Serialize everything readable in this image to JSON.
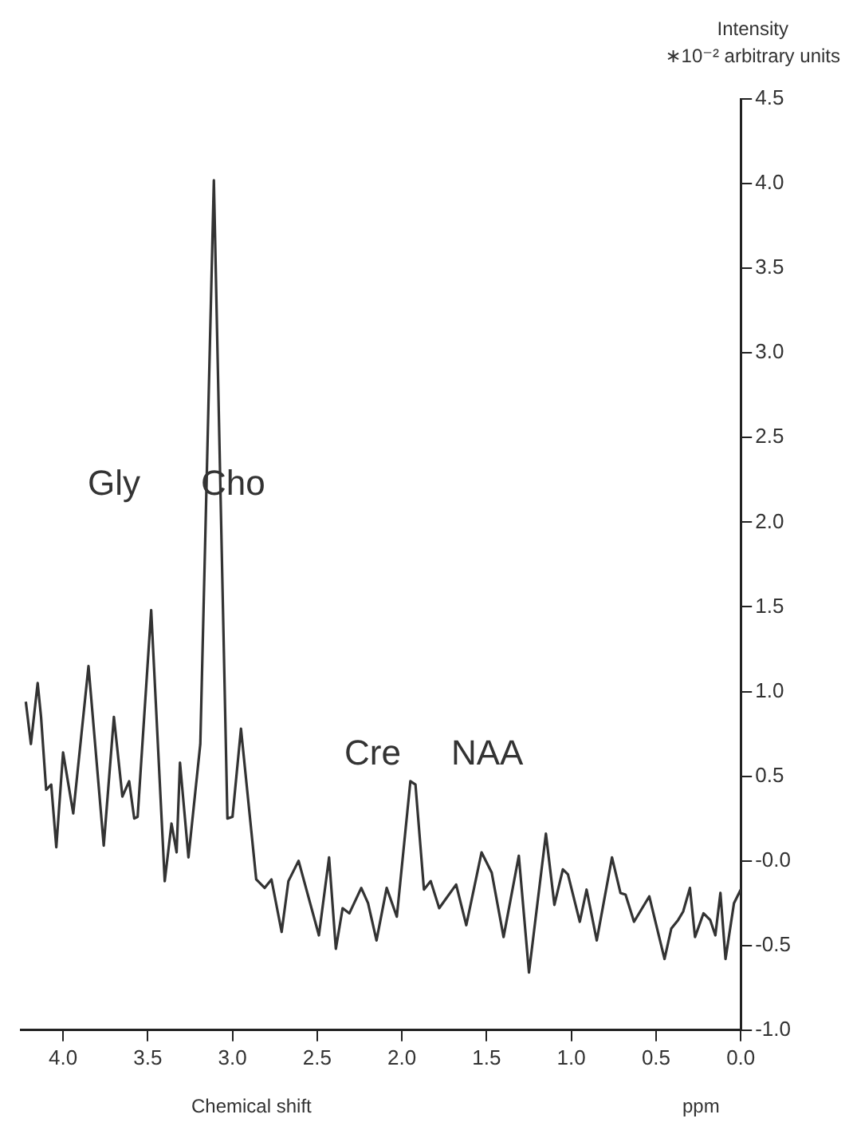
{
  "chart_data": {
    "type": "line",
    "xlabel": "Chemical shift",
    "ylabel": "Intensity\n∗10⁻² arbitrary units",
    "annotations": [
      "Gly",
      "Cho",
      "Cre",
      "NAA",
      "ppm"
    ],
    "xlim": [
      4.25,
      0
    ],
    "xticks": [
      {
        "value": 4,
        "label": "4.0"
      },
      3.5,
      {
        "value": 3,
        "label": "3.0"
      },
      2.5,
      {
        "value": 2,
        "label": "2.0"
      },
      1.5,
      {
        "value": 1,
        "label": "1.0"
      },
      0.5,
      {
        "value": 0,
        "label": "0.0"
      }
    ],
    "ylim": [
      -1,
      4.5
    ],
    "yticks": [
      {
        "value": -1,
        "label": "-1.0"
      },
      -0.5,
      {
        "value": 0,
        "label": "-0.0"
      },
      0.5,
      {
        "value": 1,
        "label": "1.0"
      },
      1.5,
      {
        "value": 2,
        "label": "2.0"
      },
      2.5,
      {
        "value": 3,
        "label": "3.0"
      },
      3.5,
      {
        "value": 4,
        "label": "4.0"
      },
      4.5
    ],
    "marker": "none",
    "line_style": "solid",
    "series": [
      {
        "color": "#333333",
        "x": [
          4.22,
          4.19,
          4.15,
          4.13,
          4.1,
          4.07,
          4.04,
          4.0,
          3.94,
          3.85,
          3.76,
          3.7,
          3.65,
          3.61,
          3.58,
          3.56,
          3.48,
          3.4,
          3.36,
          3.33,
          3.31,
          3.26,
          3.19,
          3.11,
          3.03,
          3.0,
          2.95,
          2.86,
          2.81,
          2.77,
          2.71,
          2.67,
          2.61,
          2.49,
          2.43,
          2.39,
          2.35,
          2.31,
          2.24,
          2.2,
          2.15,
          2.09,
          2.03,
          1.95,
          1.92,
          1.87,
          1.83,
          1.78,
          1.68,
          1.62,
          1.53,
          1.47,
          1.4,
          1.31,
          1.25,
          1.15,
          1.1,
          1.05,
          1.02,
          0.95,
          0.91,
          0.85,
          0.76,
          0.71,
          0.68,
          0.63,
          0.54,
          0.45,
          0.41,
          0.37,
          0.34,
          0.3,
          0.27,
          0.22,
          0.18,
          0.15,
          0.12,
          0.09,
          0.04,
          0.0
        ],
        "values": [
          0.94,
          0.69,
          1.05,
          0.85,
          0.42,
          0.45,
          0.08,
          0.64,
          0.28,
          1.15,
          0.09,
          0.85,
          0.38,
          0.47,
          0.25,
          0.26,
          1.48,
          -0.12,
          0.22,
          0.05,
          0.58,
          0.02,
          0.69,
          4.02,
          0.25,
          0.26,
          0.78,
          -0.11,
          -0.16,
          -0.11,
          -0.42,
          -0.12,
          0.0,
          -0.44,
          0.02,
          -0.52,
          -0.28,
          -0.31,
          -0.16,
          -0.25,
          -0.47,
          -0.16,
          -0.33,
          0.47,
          0.45,
          -0.17,
          -0.12,
          -0.28,
          -0.14,
          -0.38,
          0.05,
          -0.07,
          -0.45,
          0.03,
          -0.66,
          0.16,
          -0.26,
          -0.05,
          -0.08,
          -0.36,
          -0.17,
          -0.47,
          0.02,
          -0.19,
          -0.2,
          -0.36,
          -0.21,
          -0.58,
          -0.4,
          -0.35,
          -0.3,
          -0.16,
          -0.45,
          -0.31,
          -0.35,
          -0.44,
          -0.19,
          -0.58,
          -0.25,
          -0.17
        ]
      }
    ]
  }
}
